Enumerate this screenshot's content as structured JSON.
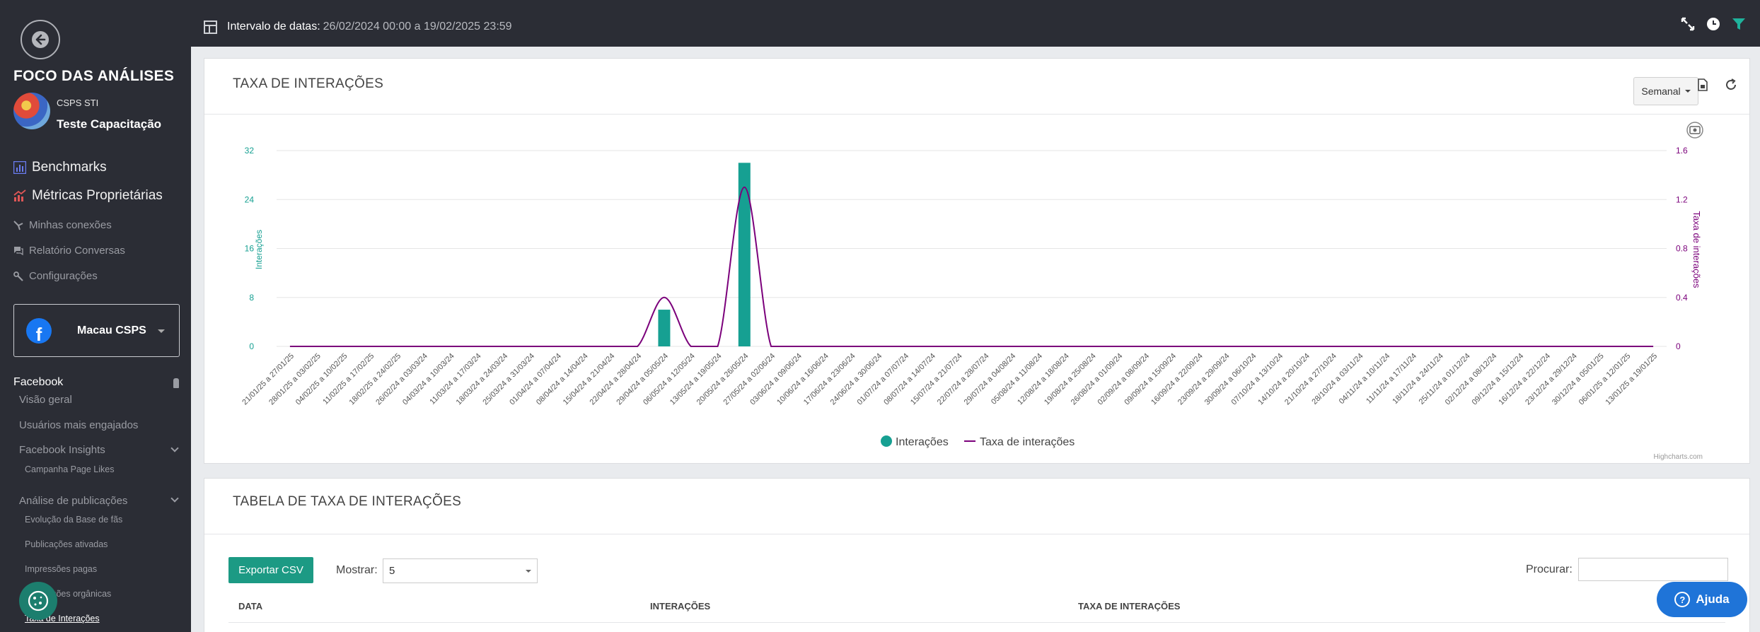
{
  "sidebar": {
    "title": "FOCO DAS ANÁLISES",
    "org": "CSPS STI",
    "user": "Teste Capacitação",
    "main_links": [
      {
        "label": "Benchmarks",
        "icon": "bar-chart-icon",
        "color": "#6a7cf0"
      },
      {
        "label": "Métricas Proprietárias",
        "icon": "chart-up-icon",
        "color": "#e05656"
      }
    ],
    "small_links": [
      {
        "label": "Minhas conexões",
        "icon": "connections-icon"
      },
      {
        "label": "Relatório Conversas",
        "icon": "chat-icon"
      },
      {
        "label": "Configurações",
        "icon": "settings-icon"
      }
    ],
    "page_selector": {
      "name": "Macau CSPS",
      "network": "f"
    },
    "section": "Facebook",
    "items": [
      "Visão geral",
      "Usuários mais engajados",
      "Facebook Insights"
    ],
    "insights_sub": [
      "Campanha Page Likes"
    ],
    "analysis": "Análise de publicações",
    "analysis_sub": [
      "Evolução da Base de fãs",
      "Publicações ativadas",
      "Impressões pagas",
      "Impressões orgânicas",
      "Taxa de Interações"
    ]
  },
  "header": {
    "label": "Intervalo de datas:",
    "value": "26/02/2024 00:00 a 19/02/2025 23:59"
  },
  "chart_card": {
    "title": "TAXA DE INTERAÇÕES",
    "period": "Semanal",
    "credits": "Highcharts.com"
  },
  "chart_data": {
    "type": "bar",
    "categories": [
      "21/01/25 a 27/01/25",
      "28/01/25 a 03/02/25",
      "04/02/25 a 10/02/25",
      "11/02/25 a 17/02/25",
      "18/02/25 a 24/02/25",
      "26/02/24 a 03/03/24",
      "04/03/24 a 10/03/24",
      "11/03/24 a 17/03/24",
      "18/03/24 a 24/03/24",
      "25/03/24 a 31/03/24",
      "01/04/24 a 07/04/24",
      "08/04/24 a 14/04/24",
      "15/04/24 a 21/04/24",
      "22/04/24 a 28/04/24",
      "29/04/24 a 05/05/24",
      "06/05/24 a 12/05/24",
      "13/05/24 a 19/05/24",
      "20/05/24 a 26/05/24",
      "27/05/24 a 02/06/24",
      "03/06/24 a 09/06/24",
      "10/06/24 a 16/06/24",
      "17/06/24 a 23/06/24",
      "24/06/24 a 30/06/24",
      "01/07/24 a 07/07/24",
      "08/07/24 a 14/07/24",
      "15/07/24 a 21/07/24",
      "22/07/24 a 28/07/24",
      "29/07/24 a 04/08/24",
      "05/08/24 a 11/08/24",
      "12/08/24 a 18/08/24",
      "19/08/24 a 25/08/24",
      "26/08/24 a 01/09/24",
      "02/09/24 a 08/09/24",
      "09/09/24 a 15/09/24",
      "16/09/24 a 22/09/24",
      "23/09/24 a 29/09/24",
      "30/09/24 a 06/10/24",
      "07/10/24 a 13/10/24",
      "14/10/24 a 20/10/24",
      "21/10/24 a 27/10/24",
      "28/10/24 a 03/11/24",
      "04/11/24 a 10/11/24",
      "11/11/24 a 17/11/24",
      "18/11/24 a 24/11/24",
      "25/11/24 a 01/12/24",
      "02/12/24 a 08/12/24",
      "09/12/24 a 15/12/24",
      "16/12/24 a 22/12/24",
      "23/12/24 a 29/12/24",
      "30/12/24 a 05/01/25",
      "06/01/25 a 12/01/25",
      "13/01/25 a 19/01/25"
    ],
    "series": [
      {
        "name": "Interações",
        "type": "bar",
        "axis": "left",
        "color": "#16a092",
        "values": [
          0,
          0,
          0,
          0,
          0,
          0,
          0,
          0,
          0,
          0,
          0,
          0,
          0,
          0,
          6,
          0,
          0,
          30,
          0,
          0,
          0,
          0,
          0,
          0,
          0,
          0,
          0,
          0,
          0,
          0,
          0,
          0,
          0,
          0,
          0,
          0,
          0,
          0,
          0,
          0,
          0,
          0,
          0,
          0,
          0,
          0,
          0,
          0,
          0,
          0,
          0,
          0
        ]
      },
      {
        "name": "Taxa de interações",
        "type": "line",
        "axis": "right",
        "color": "#7b007b",
        "values": [
          0,
          0,
          0,
          0,
          0,
          0,
          0,
          0,
          0,
          0,
          0,
          0,
          0,
          0,
          0.4,
          0,
          0,
          1.3,
          0,
          0,
          0,
          0,
          0,
          0,
          0,
          0,
          0,
          0,
          0,
          0,
          0,
          0,
          0,
          0,
          0,
          0,
          0,
          0,
          0,
          0,
          0,
          0,
          0,
          0,
          0,
          0,
          0,
          0,
          0,
          0,
          0,
          0
        ]
      }
    ],
    "ylabel_left": "Interações",
    "ylabel_right": "Taxa de interações",
    "yticks_left": [
      "0",
      "8",
      "16",
      "24",
      "32"
    ],
    "yticks_right": [
      "0",
      "0.4",
      "0.8",
      "1.2",
      "1.6"
    ],
    "ylim_left": [
      0,
      32
    ],
    "ylim_right": [
      0,
      1.6
    ],
    "legend": "bottom-center",
    "grid": true
  },
  "table_card": {
    "title": "TABELA DE TAXA DE INTERAÇÕES",
    "export_label": "Exportar CSV",
    "show_label": "Mostrar:",
    "show_value": "5",
    "search_label": "Procurar:",
    "columns": [
      "DATA",
      "INTERAÇÕES",
      "TAXA DE INTERAÇÕES"
    ]
  },
  "help": {
    "label": "Ajuda"
  }
}
